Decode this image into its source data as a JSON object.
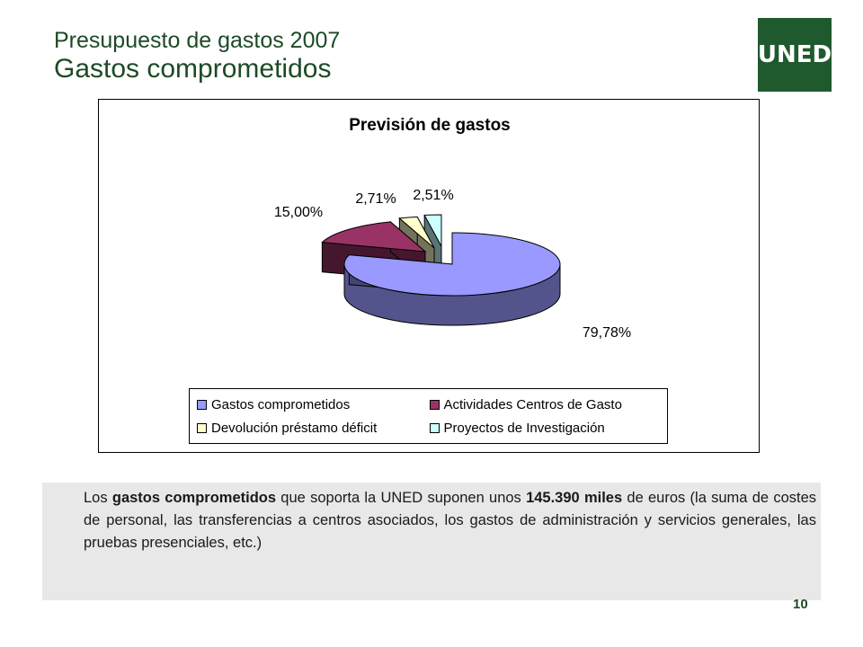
{
  "header": {
    "title_top": "Presupuesto de gastos 2007",
    "title_main": "Gastos comprometidos",
    "logo_text": "UNED",
    "brand_color": "#1f5a2e"
  },
  "chart_data": {
    "type": "pie",
    "title": "Previsión de gastos",
    "three_d": true,
    "legend_position": "bottom",
    "categories": [
      "Gastos comprometidos",
      "Actividades Centros de Gasto",
      "Devolución préstamo déficit",
      "Proyectos de Investigación"
    ],
    "values": [
      79.78,
      15.0,
      2.71,
      2.51
    ],
    "labels": [
      "79,78%",
      "15,00%",
      "2,71%",
      "2,51%"
    ],
    "colors": [
      "#9999ff",
      "#993366",
      "#ffffcc",
      "#ccffff"
    ]
  },
  "note": {
    "part1": "Los ",
    "bold1": "gastos comprometidos",
    "part2": " que soporta la UNED suponen unos ",
    "bold2": "145.390 miles",
    "part3": " de euros (la suma de costes de personal, las transferencias a centros asociados, los gastos de  administración y servicios generales, las pruebas presenciales, etc.)"
  },
  "page_number": "10"
}
